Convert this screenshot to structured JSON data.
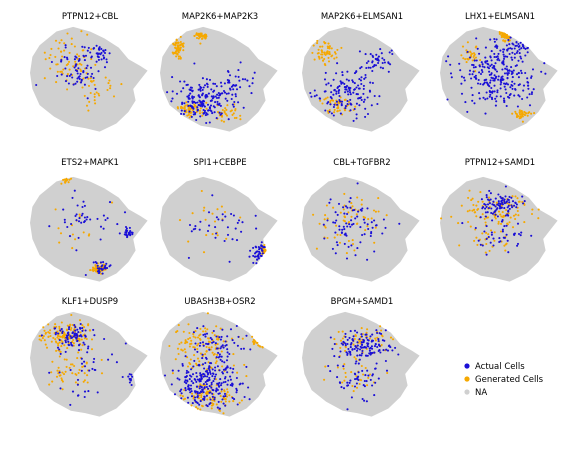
{
  "chart_data": {
    "type": "scatter",
    "colors": {
      "actual": "#1a0fd6",
      "generated": "#f5a800",
      "na": "#d0d0d0"
    },
    "legend": {
      "placement": "bottom-right",
      "entries": [
        {
          "key": "actual",
          "label": "Actual Cells"
        },
        {
          "key": "generated",
          "label": "Generated Cells"
        },
        {
          "key": "na",
          "label": "NA"
        }
      ]
    },
    "panels": [
      {
        "title": "PTPN12+CBL",
        "actual": [
          [
            0.55,
            0.3,
            0.12,
            0.09,
            40
          ],
          [
            0.4,
            0.45,
            0.2,
            0.2,
            60
          ]
        ],
        "generated": [
          [
            0.35,
            0.35,
            0.22,
            0.25,
            70
          ],
          [
            0.55,
            0.6,
            0.2,
            0.15,
            25
          ]
        ]
      },
      {
        "title": "MAP2K6+MAP2K3",
        "actual": [
          [
            0.35,
            0.7,
            0.22,
            0.16,
            170
          ],
          [
            0.6,
            0.55,
            0.2,
            0.2,
            50
          ]
        ],
        "generated": [
          [
            0.25,
            0.78,
            0.1,
            0.06,
            60
          ],
          [
            0.15,
            0.22,
            0.05,
            0.1,
            60
          ],
          [
            0.35,
            0.14,
            0.06,
            0.04,
            40
          ],
          [
            0.55,
            0.8,
            0.15,
            0.08,
            30
          ]
        ]
      },
      {
        "title": "MAP2K6+ELMSAN1",
        "actual": [
          [
            0.35,
            0.62,
            0.25,
            0.22,
            140
          ],
          [
            0.65,
            0.35,
            0.15,
            0.12,
            40
          ],
          [
            0.88,
            0.22,
            0.04,
            0.05,
            10
          ]
        ],
        "generated": [
          [
            0.2,
            0.28,
            0.12,
            0.12,
            60
          ],
          [
            0.3,
            0.75,
            0.12,
            0.08,
            50
          ]
        ]
      },
      {
        "title": "LHX1+ELMSAN1",
        "actual": [
          [
            0.45,
            0.5,
            0.3,
            0.24,
            240
          ],
          [
            0.6,
            0.25,
            0.18,
            0.12,
            60
          ]
        ],
        "generated": [
          [
            0.55,
            0.12,
            0.04,
            0.05,
            80
          ],
          [
            0.25,
            0.3,
            0.1,
            0.1,
            30
          ],
          [
            0.68,
            0.82,
            0.07,
            0.05,
            40
          ]
        ]
      },
      {
        "title": "ETS2+MAPK1",
        "actual": [
          [
            0.6,
            0.85,
            0.08,
            0.06,
            30
          ],
          [
            0.82,
            0.55,
            0.04,
            0.05,
            25
          ],
          [
            0.45,
            0.45,
            0.25,
            0.2,
            40
          ]
        ],
        "generated": [
          [
            0.58,
            0.86,
            0.06,
            0.04,
            90
          ],
          [
            0.3,
            0.08,
            0.04,
            0.04,
            15
          ],
          [
            0.4,
            0.5,
            0.2,
            0.2,
            15
          ]
        ]
      },
      {
        "title": "SPI1+CEBPE",
        "actual": [
          [
            0.82,
            0.72,
            0.08,
            0.1,
            40
          ],
          [
            0.5,
            0.5,
            0.25,
            0.25,
            35
          ]
        ],
        "generated": [
          [
            0.9,
            0.7,
            0.04,
            0.04,
            30
          ],
          [
            0.45,
            0.45,
            0.25,
            0.25,
            20
          ]
        ]
      },
      {
        "title": "CBL+TGFBR2",
        "actual": [
          [
            0.45,
            0.5,
            0.28,
            0.25,
            80
          ]
        ],
        "generated": [
          [
            0.4,
            0.45,
            0.28,
            0.25,
            60
          ]
        ]
      },
      {
        "title": "PTPN12+SAMD1",
        "actual": [
          [
            0.5,
            0.3,
            0.16,
            0.1,
            90
          ],
          [
            0.5,
            0.55,
            0.22,
            0.2,
            40
          ]
        ],
        "generated": [
          [
            0.45,
            0.35,
            0.3,
            0.16,
            100
          ],
          [
            0.4,
            0.6,
            0.2,
            0.2,
            30
          ]
        ]
      },
      {
        "title": "KLF1+DUSP9",
        "actual": [
          [
            0.35,
            0.28,
            0.2,
            0.1,
            70
          ],
          [
            0.4,
            0.55,
            0.25,
            0.25,
            40
          ],
          [
            0.85,
            0.65,
            0.04,
            0.05,
            10
          ]
        ],
        "generated": [
          [
            0.3,
            0.25,
            0.25,
            0.12,
            130
          ],
          [
            0.35,
            0.55,
            0.22,
            0.22,
            50
          ]
        ]
      },
      {
        "title": "UBASH3B+OSR2",
        "actual": [
          [
            0.4,
            0.68,
            0.28,
            0.2,
            240
          ],
          [
            0.5,
            0.35,
            0.25,
            0.2,
            60
          ]
        ],
        "generated": [
          [
            0.35,
            0.35,
            0.3,
            0.25,
            120
          ],
          [
            0.4,
            0.8,
            0.25,
            0.12,
            90
          ],
          [
            0.85,
            0.3,
            0.06,
            0.05,
            15
          ]
        ]
      },
      {
        "title": "BPGM+SAMD1",
        "actual": [
          [
            0.5,
            0.35,
            0.25,
            0.12,
            120
          ],
          [
            0.45,
            0.6,
            0.25,
            0.22,
            60
          ]
        ],
        "generated": [
          [
            0.5,
            0.3,
            0.25,
            0.12,
            50
          ],
          [
            0.45,
            0.62,
            0.22,
            0.2,
            30
          ]
        ]
      }
    ]
  }
}
